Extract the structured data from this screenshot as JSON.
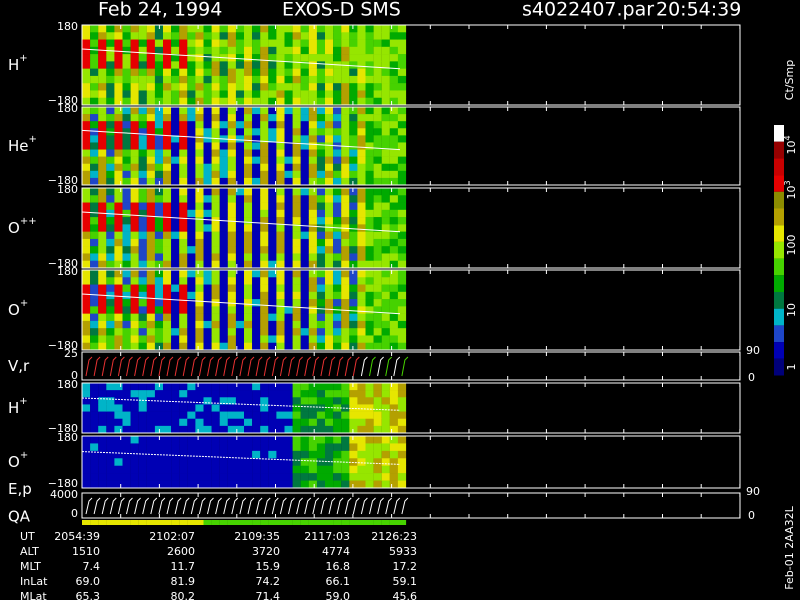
{
  "header": {
    "date": "Feb 24, 1994",
    "instrument": "EXOS-D SMS",
    "file": "s4022407.par",
    "time": "20:54:39"
  },
  "panels": [
    {
      "label": "H",
      "sup": "+",
      "ticks": [
        "180",
        "−180"
      ]
    },
    {
      "label": "He",
      "sup": "+",
      "ticks": [
        "180",
        "−180"
      ]
    },
    {
      "label": "O",
      "sup": "++",
      "ticks": [
        "180",
        "−180"
      ]
    },
    {
      "label": "O",
      "sup": "+",
      "ticks": [
        "180",
        "−180"
      ]
    },
    {
      "label": "V,r",
      "ticks": [
        "25",
        "0"
      ],
      "right_ticks": [
        "90",
        "0"
      ]
    },
    {
      "label": "H",
      "sup": "+",
      "ticks": [
        "180",
        "−180"
      ]
    },
    {
      "label": "O",
      "sup": "+",
      "ticks": [
        "180",
        "−180"
      ]
    },
    {
      "label": "E,p",
      "label2": "QA",
      "ticks": [
        "4000",
        "0"
      ],
      "right_ticks": [
        "90",
        "0"
      ]
    }
  ],
  "colorbar": {
    "title": "Ct/Smp",
    "labels": [
      {
        "base": "10",
        "exp": "4"
      },
      {
        "base": "10",
        "exp": "3"
      },
      {
        "base": "100"
      },
      {
        "base": "10"
      },
      {
        "base": "1"
      }
    ]
  },
  "side_note": "Feb-01 2AA32L",
  "footer": {
    "rows": [
      [
        "UT",
        "2054:39",
        "2102:07",
        "2109:35",
        "2117:03",
        "2126:23"
      ],
      [
        "ALT",
        "1510",
        "2600",
        "3720",
        "4774",
        "5933"
      ],
      [
        "MLT",
        "7.4",
        "11.7",
        "15.9",
        "16.8",
        "17.2"
      ],
      [
        "InLat",
        "69.0",
        "81.9",
        "74.2",
        "66.1",
        "59.1"
      ],
      [
        "MLat",
        "65.3",
        "80.2",
        "71.4",
        "59.0",
        "45.6"
      ]
    ]
  }
}
